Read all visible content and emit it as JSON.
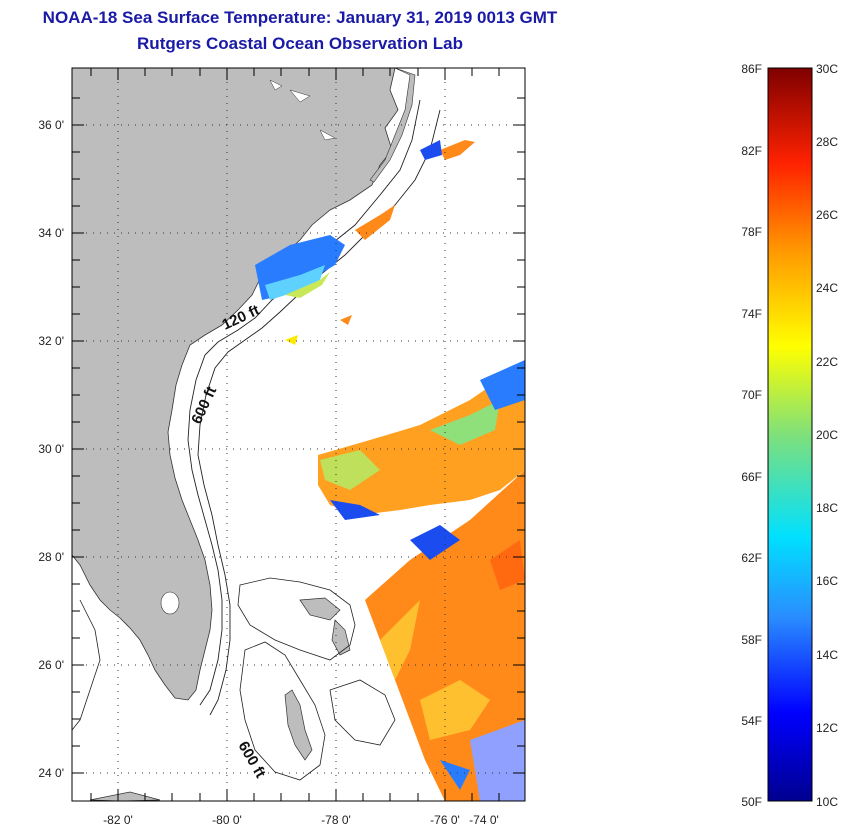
{
  "header": {
    "title": "NOAA-18 Sea Surface Temperature:  January 31, 2019 0013 GMT",
    "subtitle": "Rutgers Coastal Ocean Observation Lab"
  },
  "map": {
    "lat_labels": [
      "36 0'",
      "34 0'",
      "32 0'",
      "30 0'",
      "28 0'",
      "26 0'",
      "24 0'"
    ],
    "lon_labels": [
      "-82 0'",
      "-80 0'",
      "-78 0'",
      "-76 0'",
      "-74 0'"
    ],
    "contour_labels": [
      "120 ft",
      "600 ft",
      "600 ft"
    ],
    "land_color": "#bdbdbd",
    "ocean_color": "#ffffff"
  },
  "colorbar": {
    "fahrenheit_labels": [
      "86F",
      "82F",
      "78F",
      "74F",
      "70F",
      "66F",
      "62F",
      "58F",
      "54F",
      "50F"
    ],
    "celsius_labels": [
      "30C",
      "28C",
      "26C",
      "24C",
      "22C",
      "20C",
      "18C",
      "16C",
      "14C",
      "12C",
      "10C"
    ]
  }
}
